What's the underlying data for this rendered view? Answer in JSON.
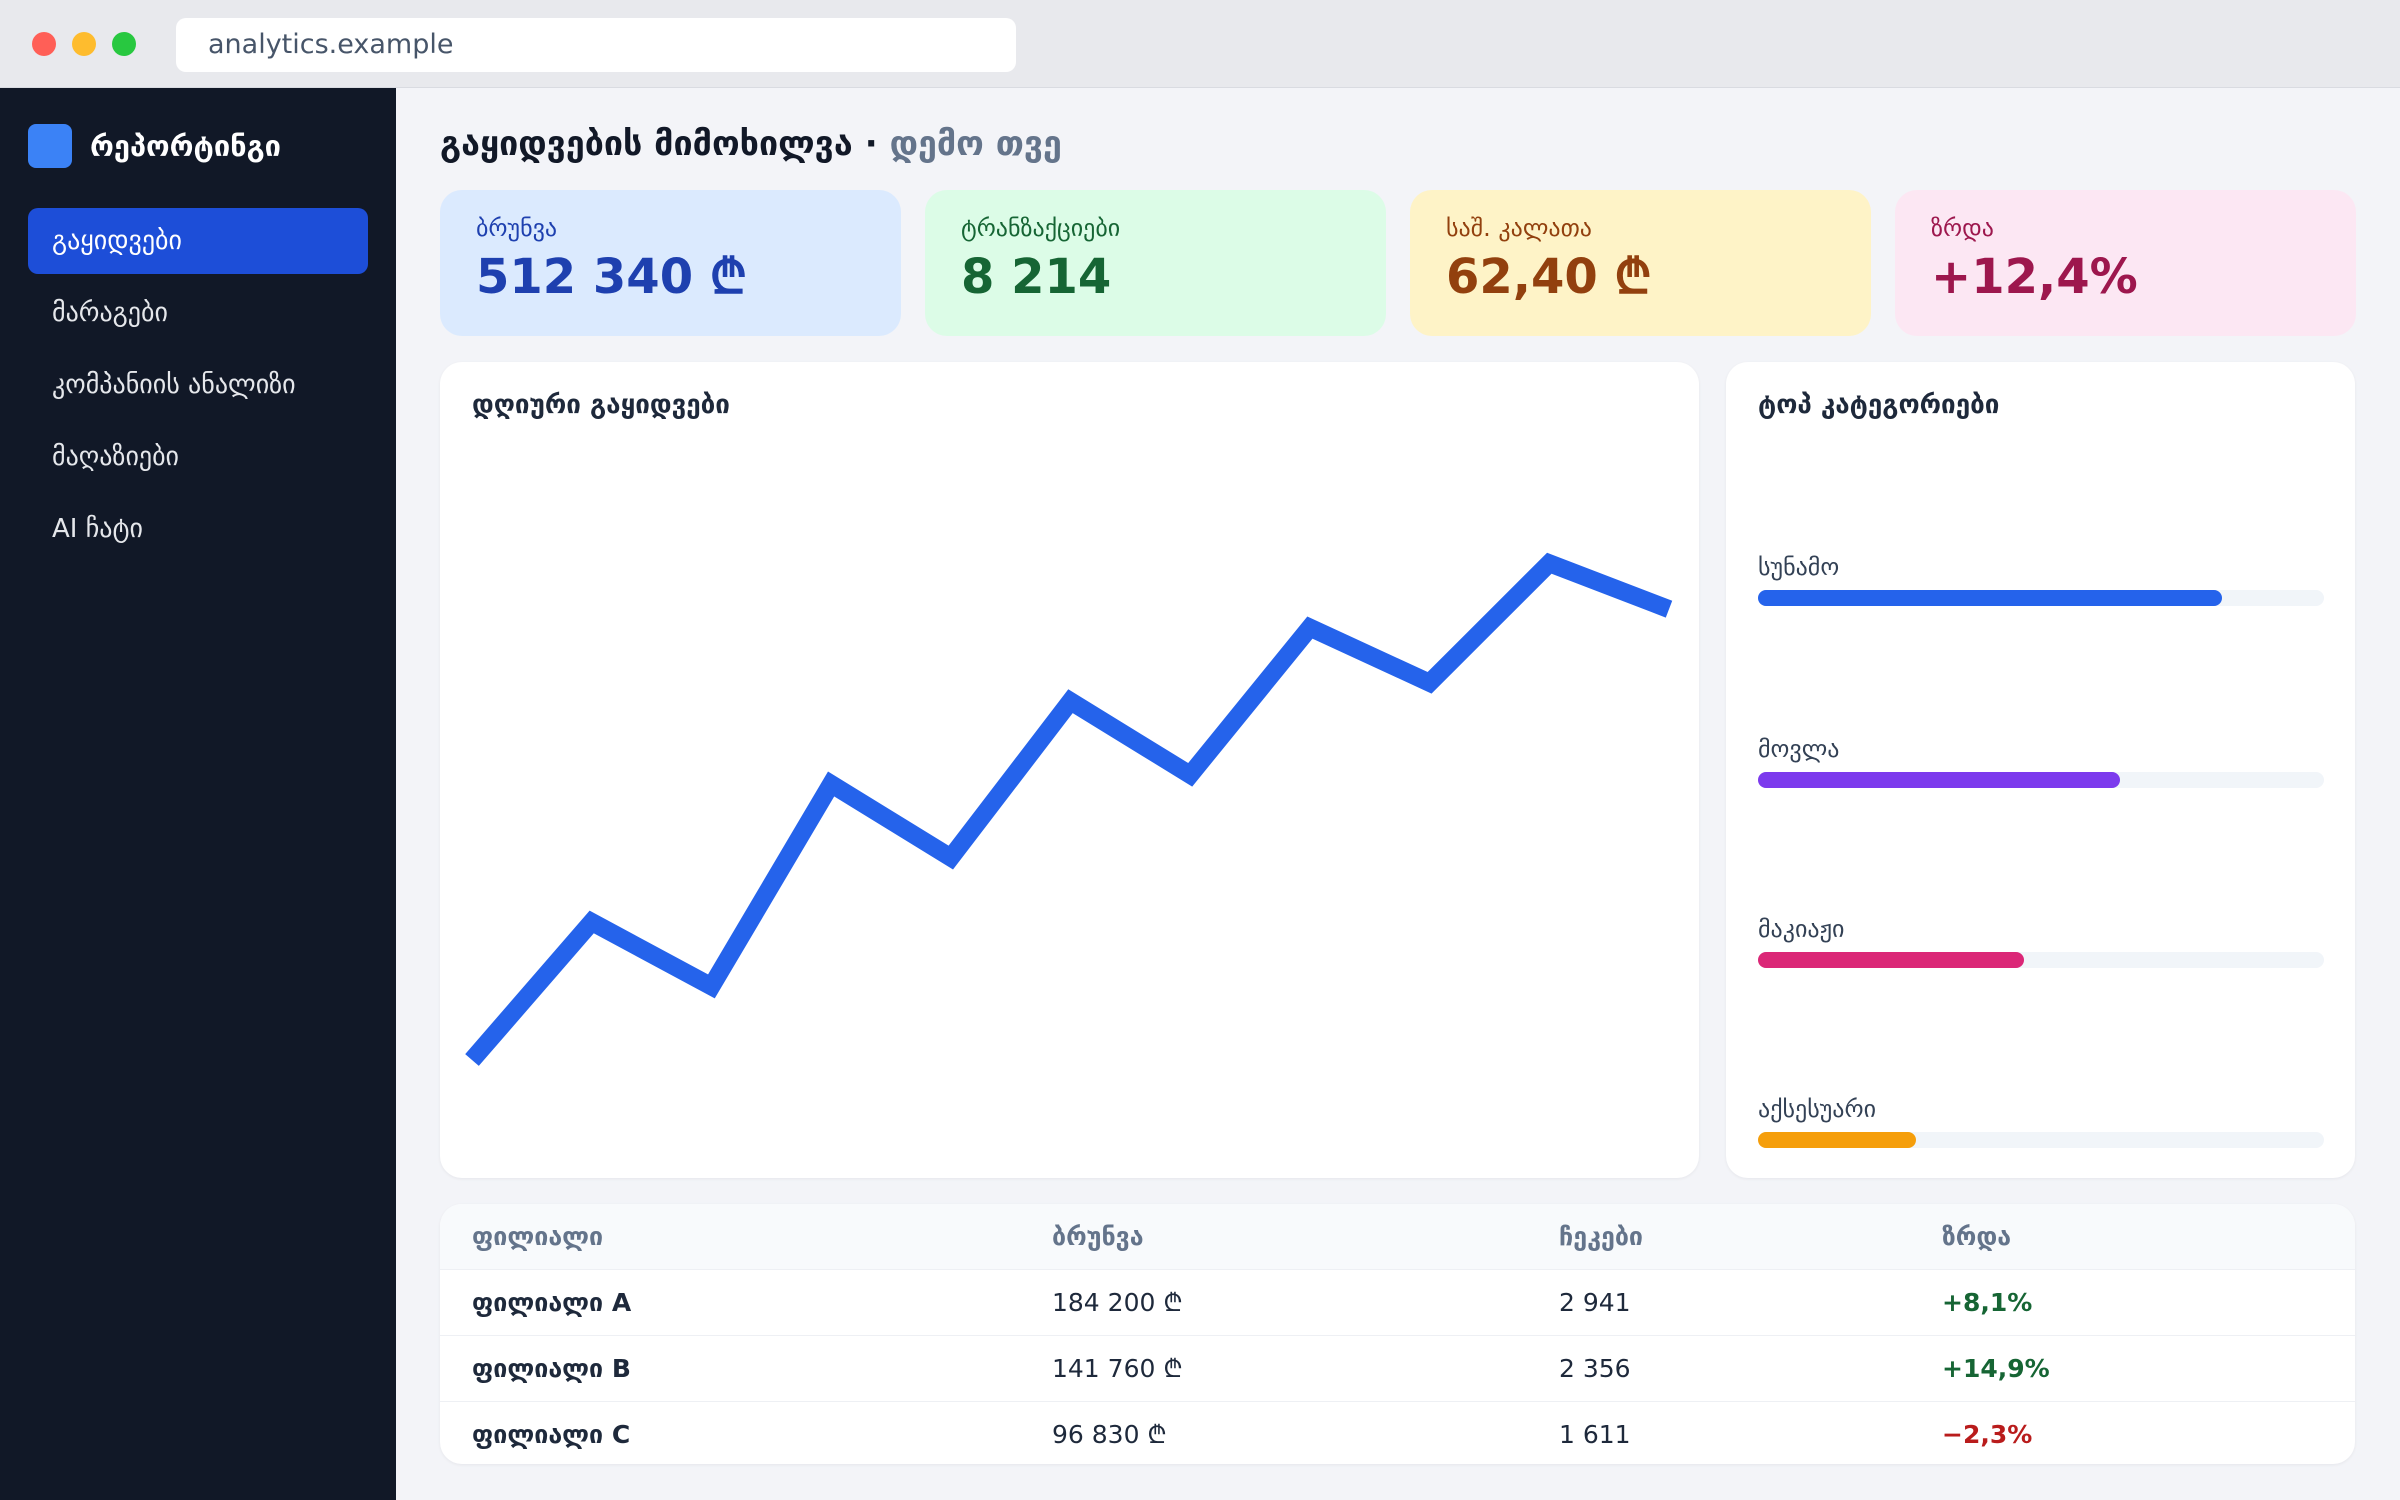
{
  "browser": {
    "url": "analytics.example"
  },
  "sidebar": {
    "brand": "რეპორტინგი",
    "items": [
      {
        "label": "გაყიდვები",
        "active": true
      },
      {
        "label": "მარაგები",
        "active": false
      },
      {
        "label": "კომპანიის ანალიზი",
        "active": false
      },
      {
        "label": "მაღაზიები",
        "active": false
      },
      {
        "label": "AI ჩატი",
        "active": false
      }
    ]
  },
  "header": {
    "title": "გაყიდვების მიმოხილვა",
    "separator": "·",
    "subtitle": "დემო თვე"
  },
  "kpis": [
    {
      "label": "ბრუნვა",
      "value": "512 340 ₾"
    },
    {
      "label": "ტრანზაქციები",
      "value": "8 214"
    },
    {
      "label": "საშ. კალათა",
      "value": "62,40 ₾"
    },
    {
      "label": "ზრდა",
      "value": "+12,4%"
    }
  ],
  "daily_sales": {
    "title": "დღიური გაყიდვები"
  },
  "chart_data": {
    "type": "line",
    "title": "დღიური გაყიდვები",
    "x": [
      1,
      2,
      3,
      4,
      5,
      6,
      7,
      8,
      9,
      10,
      11
    ],
    "series": [
      {
        "values": [
          10,
          25,
          18,
          40,
          32,
          49,
          41,
          57,
          51,
          64,
          59
        ]
      }
    ],
    "ylim": [
      0,
      75
    ],
    "grid": false,
    "color": "#2563eb"
  },
  "categories": {
    "title": "ტოპ კატეგორიები",
    "items": [
      {
        "label": "სუნამო",
        "fraction": 0.82,
        "color": "#2563eb"
      },
      {
        "label": "მოვლა",
        "fraction": 0.64,
        "color": "#7c3aed"
      },
      {
        "label": "მაკიაჟი",
        "fraction": 0.47,
        "color": "#db2777"
      },
      {
        "label": "აქსესუარი",
        "fraction": 0.28,
        "color": "#f59e0b"
      }
    ]
  },
  "branches": {
    "headers": [
      "ფილიალი",
      "ბრუნვა",
      "ჩეკები",
      "ზრდა"
    ],
    "rows": [
      {
        "name": "ფილიალი A",
        "revenue": "184 200 ₾",
        "checks": "2 941",
        "growth": "+8,1%",
        "trend": "up"
      },
      {
        "name": "ფილიალი B",
        "revenue": "141 760 ₾",
        "checks": "2 356",
        "growth": "+14,9%",
        "trend": "up"
      },
      {
        "name": "ფილიალი C",
        "revenue": "96 830 ₾",
        "checks": "1 611",
        "growth": "−2,3%",
        "trend": "down"
      }
    ]
  }
}
